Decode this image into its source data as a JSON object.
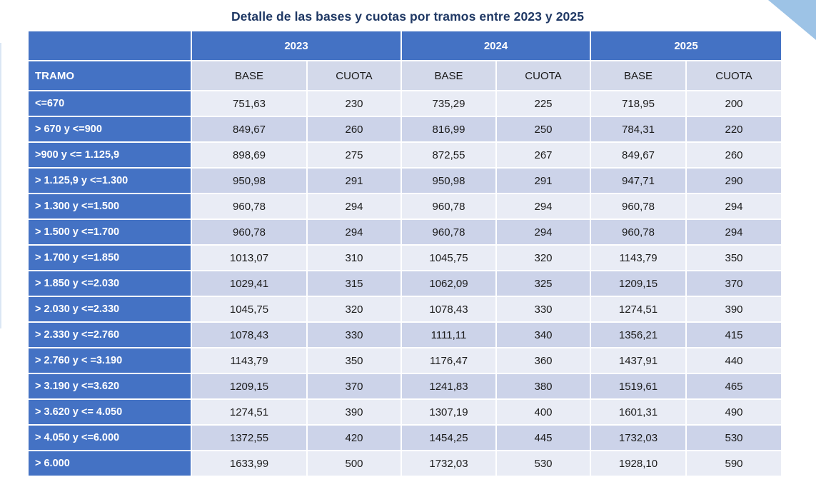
{
  "title": "Detalle de las bases y cuotas por tramos entre 2023 y 2025",
  "colors": {
    "accent_blue": "#4472c4",
    "band_light": "#e9ecf5",
    "band_dark": "#ccd3e9",
    "subheader_bg": "#d3d9ea",
    "title_text": "#1f3864",
    "corner_triangle": "#9dc3e6"
  },
  "table": {
    "tramo_header": "TRAMO",
    "year_groups": [
      {
        "year": "2023",
        "base_label": "BASE",
        "cuota_label": "CUOTA"
      },
      {
        "year": "2024",
        "base_label": "BASE",
        "cuota_label": "CUOTA"
      },
      {
        "year": "2025",
        "base_label": "BASE",
        "cuota_label": "CUOTA"
      }
    ],
    "rows": [
      {
        "tramo": "<=670",
        "values": [
          "751,63",
          "230",
          "735,29",
          "225",
          "718,95",
          "200"
        ]
      },
      {
        "tramo": "> 670 y <=900",
        "values": [
          "849,67",
          "260",
          "816,99",
          "250",
          "784,31",
          "220"
        ]
      },
      {
        "tramo": ">900 y <= 1.125,9",
        "values": [
          "898,69",
          "275",
          "872,55",
          "267",
          "849,67",
          "260"
        ]
      },
      {
        "tramo": "> 1.125,9 y <=1.300",
        "values": [
          "950,98",
          "291",
          "950,98",
          "291",
          "947,71",
          "290"
        ]
      },
      {
        "tramo": "> 1.300 y <=1.500",
        "values": [
          "960,78",
          "294",
          "960,78",
          "294",
          "960,78",
          "294"
        ]
      },
      {
        "tramo": "> 1.500 y <=1.700",
        "values": [
          "960,78",
          "294",
          "960,78",
          "294",
          "960,78",
          "294"
        ]
      },
      {
        "tramo": "> 1.700 y <=1.850",
        "values": [
          "1013,07",
          "310",
          "1045,75",
          "320",
          "1143,79",
          "350"
        ]
      },
      {
        "tramo": "> 1.850 y <=2.030",
        "values": [
          "1029,41",
          "315",
          "1062,09",
          "325",
          "1209,15",
          "370"
        ]
      },
      {
        "tramo": "> 2.030 y <=2.330",
        "values": [
          "1045,75",
          "320",
          "1078,43",
          "330",
          "1274,51",
          "390"
        ]
      },
      {
        "tramo": "> 2.330 y <=2.760",
        "values": [
          "1078,43",
          "330",
          "1111,11",
          "340",
          "1356,21",
          "415"
        ]
      },
      {
        "tramo": "> 2.760 y < =3.190",
        "values": [
          "1143,79",
          "350",
          "1176,47",
          "360",
          "1437,91",
          "440"
        ]
      },
      {
        "tramo": "> 3.190 y <=3.620",
        "values": [
          "1209,15",
          "370",
          "1241,83",
          "380",
          "1519,61",
          "465"
        ]
      },
      {
        "tramo": "> 3.620 y <= 4.050",
        "values": [
          "1274,51",
          "390",
          "1307,19",
          "400",
          "1601,31",
          "490"
        ]
      },
      {
        "tramo": "> 4.050 y <=6.000",
        "values": [
          "1372,55",
          "420",
          "1454,25",
          "445",
          "1732,03",
          "530"
        ]
      },
      {
        "tramo": "> 6.000",
        "values": [
          "1633,99",
          "500",
          "1732,03",
          "530",
          "1928,10",
          "590"
        ]
      }
    ]
  }
}
